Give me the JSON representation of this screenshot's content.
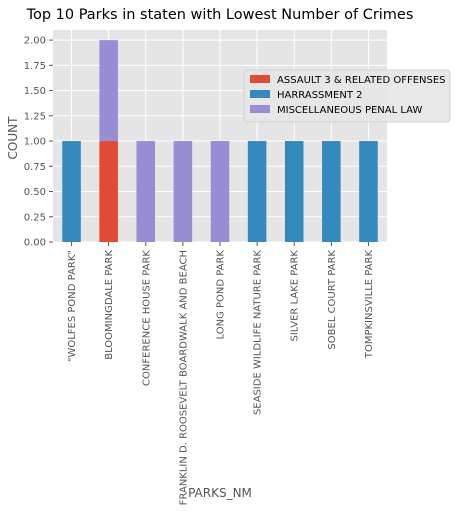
{
  "chart_data": {
    "type": "bar",
    "stacked": true,
    "title": "Top 10 Parks in staten with Lowest Number of Crimes",
    "xlabel": "PARKS_NM",
    "ylabel": "COUNT",
    "ylim": [
      0,
      2.1
    ],
    "yticks": [
      "0.00",
      "0.25",
      "0.50",
      "0.75",
      "1.00",
      "1.25",
      "1.50",
      "1.75",
      "2.00"
    ],
    "categories": [
      "\"WOLFES POND PARK\"",
      "BLOOMINGDALE PARK",
      "CONFERENCE HOUSE PARK",
      "FRANKLIN D. ROOSEVELT BOARDWALK AND BEACH",
      "LONG POND PARK",
      "SEASIDE WILDLIFE NATURE PARK",
      "SILVER LAKE PARK",
      "SOBEL COURT PARK",
      "TOMPKINSVILLE PARK"
    ],
    "series": [
      {
        "name": "ASSAULT 3 & RELATED OFFENSES",
        "color": "#E24A33",
        "values": [
          0,
          1,
          0,
          0,
          0,
          0,
          0,
          0,
          0
        ]
      },
      {
        "name": "HARRASSMENT 2",
        "color": "#348ABD",
        "values": [
          1,
          0,
          0,
          0,
          0,
          1,
          1,
          1,
          1
        ]
      },
      {
        "name": "MISCELLANEOUS PENAL LAW",
        "color": "#988ED5",
        "values": [
          0,
          1,
          1,
          1,
          1,
          0,
          0,
          0,
          0
        ]
      }
    ],
    "grid": true,
    "legend_position": "right"
  }
}
